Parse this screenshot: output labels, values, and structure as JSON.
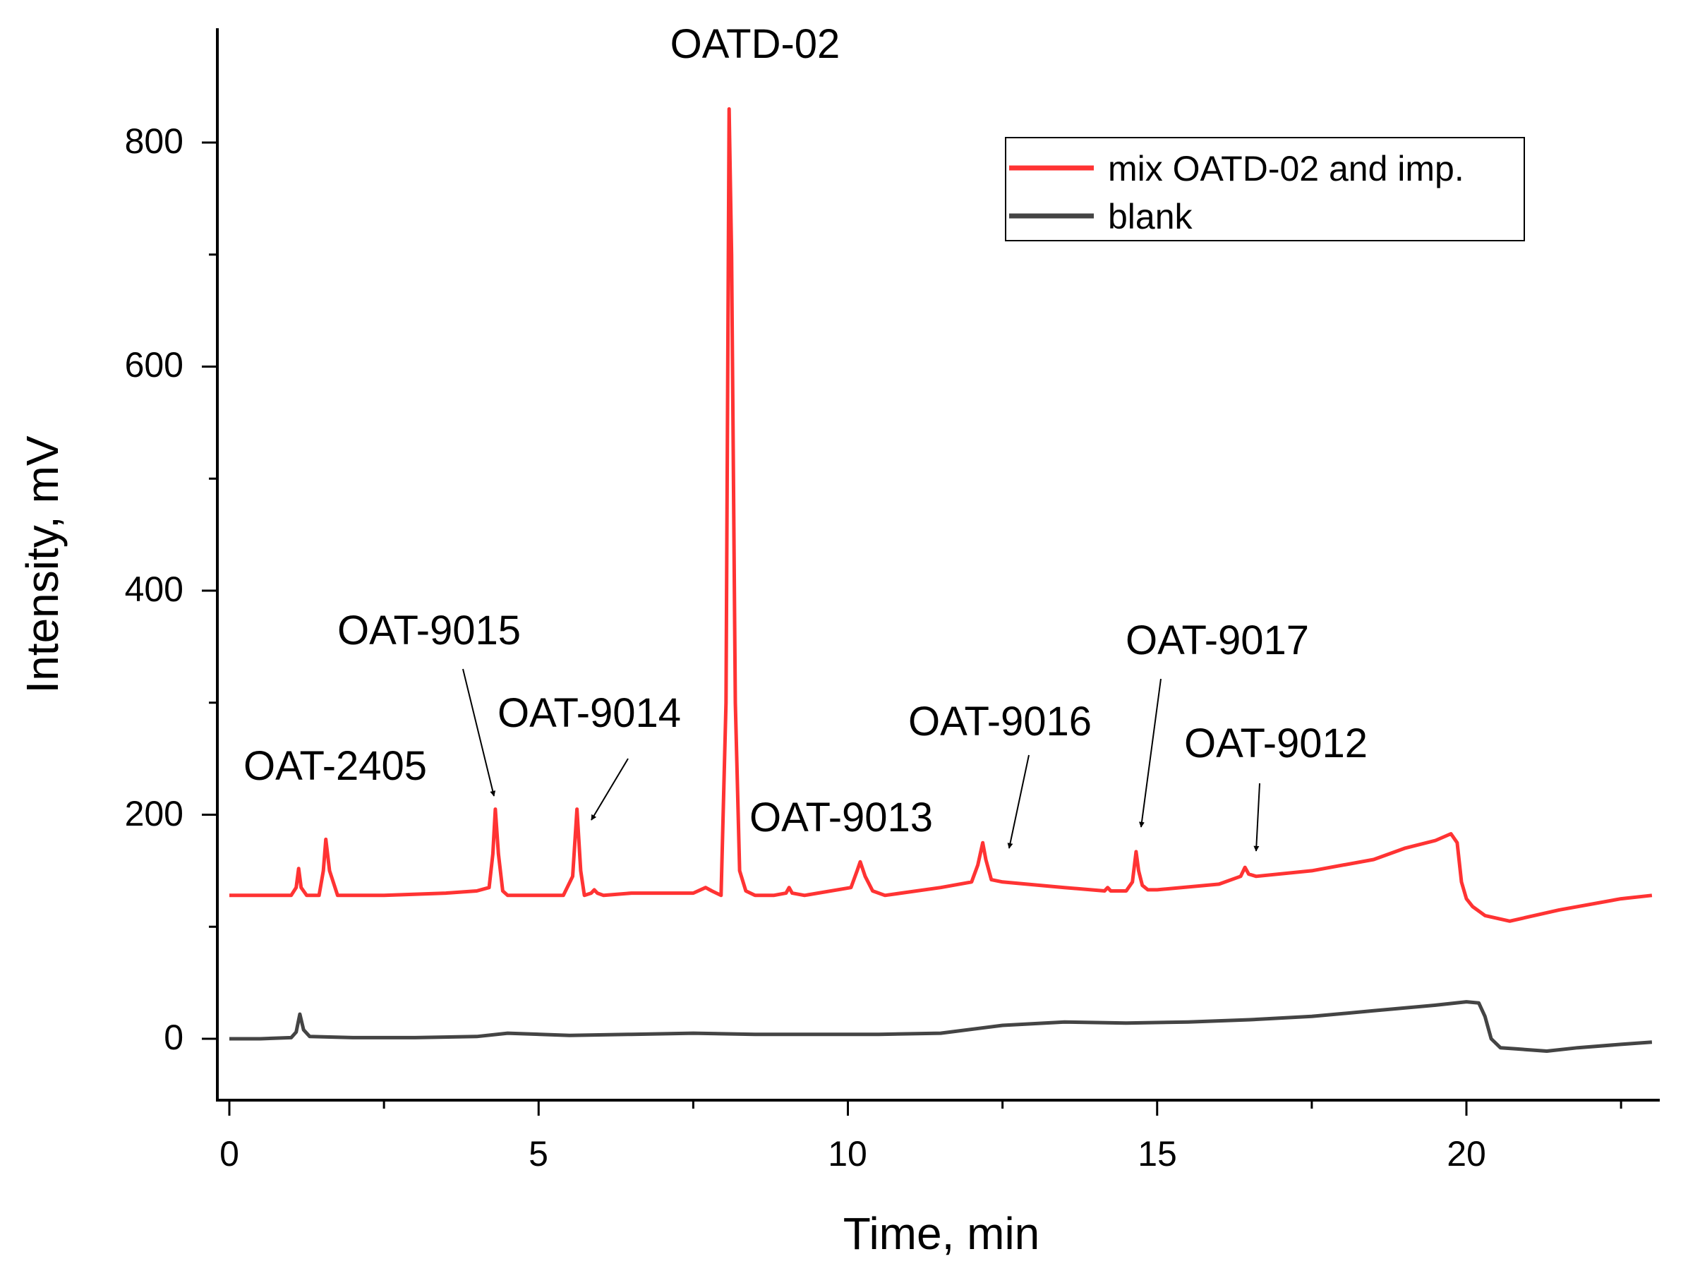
{
  "chart_data": {
    "type": "line",
    "title": "",
    "xlabel": "Time, min",
    "ylabel": "Intensity, mV",
    "xlim": [
      -0.3,
      23.2
    ],
    "ylim": [
      -50,
      900
    ],
    "xticks": [
      0,
      5,
      10,
      15,
      20
    ],
    "yticks": [
      0,
      200,
      400,
      600,
      800
    ],
    "grid": false,
    "legend": {
      "position": "top-right",
      "entries": [
        {
          "name": "mix OATD-02 and imp.",
          "color": "#ff3333"
        },
        {
          "name": "blank",
          "color": "#444444"
        }
      ]
    },
    "series": [
      {
        "name": "mix OATD-02 and imp.",
        "color": "#ff3333",
        "x": [
          0,
          0.5,
          1.0,
          1.08,
          1.12,
          1.16,
          1.25,
          1.45,
          1.52,
          1.56,
          1.62,
          1.75,
          2.5,
          3.5,
          4.0,
          4.2,
          4.26,
          4.3,
          4.35,
          4.42,
          4.5,
          4.7,
          5.4,
          5.55,
          5.62,
          5.68,
          5.74,
          5.85,
          5.9,
          5.95,
          6.05,
          6.5,
          7.5,
          7.7,
          7.8,
          7.95,
          8.03,
          8.08,
          8.12,
          8.18,
          8.25,
          8.35,
          8.5,
          8.8,
          9.0,
          9.05,
          9.1,
          9.3,
          10.05,
          10.15,
          10.2,
          10.28,
          10.4,
          10.6,
          11.5,
          12.0,
          12.1,
          12.18,
          12.23,
          12.32,
          12.5,
          13.5,
          14.15,
          14.2,
          14.25,
          14.5,
          14.6,
          14.66,
          14.7,
          14.76,
          14.85,
          15.0,
          16.0,
          16.35,
          16.42,
          16.48,
          16.6,
          17.5,
          18.5,
          19.0,
          19.5,
          19.75,
          19.85,
          19.92,
          20.0,
          20.1,
          20.3,
          20.7,
          21.5,
          22.5,
          23.0
        ],
        "y": [
          128,
          128,
          128,
          135,
          152,
          135,
          128,
          128,
          150,
          178,
          150,
          128,
          128,
          130,
          132,
          135,
          165,
          205,
          165,
          132,
          128,
          128,
          128,
          145,
          205,
          150,
          128,
          130,
          133,
          130,
          128,
          130,
          130,
          135,
          132,
          128,
          300,
          830,
          700,
          300,
          150,
          132,
          128,
          128,
          130,
          135,
          130,
          128,
          135,
          150,
          158,
          145,
          132,
          128,
          135,
          140,
          155,
          175,
          160,
          142,
          140,
          135,
          132,
          135,
          132,
          132,
          140,
          167,
          150,
          137,
          133,
          133,
          138,
          145,
          153,
          147,
          145,
          150,
          160,
          170,
          177,
          183,
          175,
          140,
          125,
          118,
          110,
          105,
          115,
          125,
          128
        ]
      },
      {
        "name": "blank",
        "color": "#444444",
        "x": [
          0,
          0.5,
          1.0,
          1.08,
          1.14,
          1.2,
          1.3,
          2.0,
          3.0,
          4.0,
          4.5,
          5.5,
          6.5,
          7.5,
          8.5,
          9.5,
          10.5,
          11.5,
          12.5,
          13.5,
          14.5,
          15.5,
          16.5,
          17.5,
          18.5,
          19.5,
          20.0,
          20.2,
          20.3,
          20.4,
          20.55,
          20.8,
          21.3,
          21.8,
          22.5,
          23.0
        ],
        "y": [
          0,
          0,
          1,
          6,
          22,
          8,
          2,
          1,
          1,
          2,
          5,
          3,
          4,
          5,
          4,
          4,
          4,
          5,
          12,
          15,
          14,
          15,
          17,
          20,
          25,
          30,
          33,
          32,
          20,
          0,
          -8,
          -9,
          -11,
          -8,
          -5,
          -3
        ]
      }
    ],
    "annotations": [
      {
        "text": "OATD-02",
        "x": 8.08,
        "y": 830
      },
      {
        "text": "OAT-2405",
        "x": 1.56,
        "y": 178
      },
      {
        "text": "OAT-9015",
        "x": 4.3,
        "y": 205
      },
      {
        "text": "OAT-9014",
        "x": 5.68,
        "y": 205
      },
      {
        "text": "OAT-9013",
        "x": 10.2,
        "y": 158
      },
      {
        "text": "OAT-9016",
        "x": 12.18,
        "y": 175
      },
      {
        "text": "OAT-9017",
        "x": 14.66,
        "y": 167
      },
      {
        "text": "OAT-9012",
        "x": 16.42,
        "y": 153
      }
    ]
  }
}
